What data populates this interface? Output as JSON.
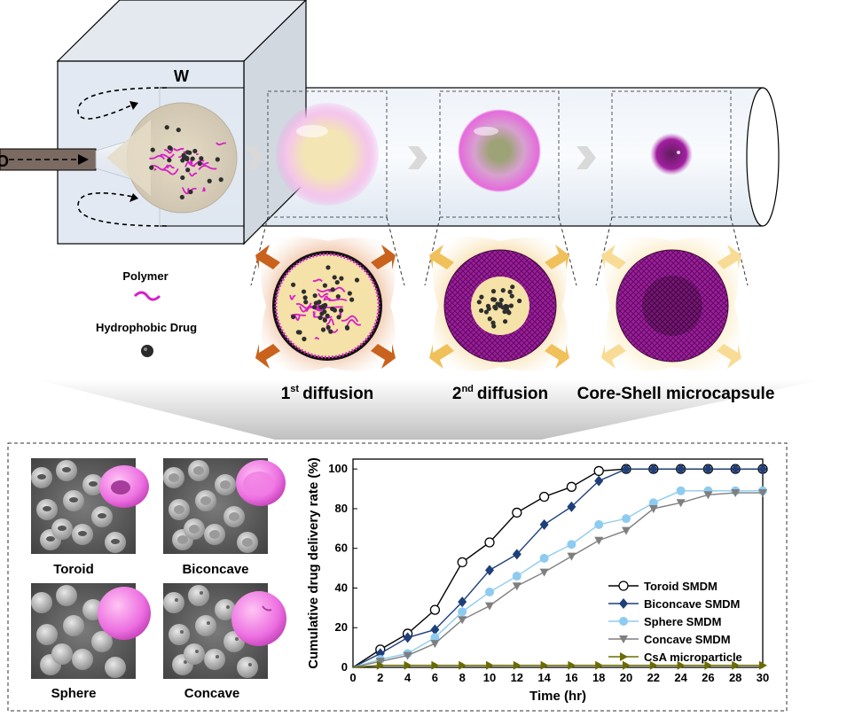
{
  "schematic": {
    "label_w": "W",
    "label_o": "O",
    "legend_polymer": "Polymer",
    "legend_drug": "Hydrophobic  Drug",
    "stage1": "diffusion",
    "stage2": "diffusion",
    "stage1_num": "1",
    "stage1_sup": "st",
    "stage2_num": "2",
    "stage2_sup": "nd",
    "stage3": "Core-Shell microcapsule",
    "colors": {
      "polymer": "#d81ec8",
      "shell": "#8c1a8e",
      "drug": "#333333",
      "tube": "#dce6f2"
    }
  },
  "sem_images": {
    "toroid": "Toroid",
    "biconcave": "Biconcave",
    "sphere": "Sphere",
    "concave": "Concave"
  },
  "chart_data": {
    "type": "line",
    "xlabel": "Time (hr)",
    "ylabel": "Cumulative drug delivery rate (%)",
    "xlim": [
      0,
      30
    ],
    "ylim": [
      0,
      105
    ],
    "xticks": [
      "0",
      "2",
      "4",
      "6",
      "8",
      "10",
      "12",
      "14",
      "16",
      "18",
      "20",
      "22",
      "24",
      "26",
      "28",
      "30"
    ],
    "yticks": [
      "0",
      "20",
      "40",
      "60",
      "80",
      "100"
    ],
    "legend_position": "bottom-right",
    "x": [
      0,
      2,
      4,
      6,
      8,
      10,
      12,
      14,
      16,
      18,
      20,
      22,
      24,
      26,
      28,
      30
    ],
    "series": [
      {
        "name": "Toroid SMDM",
        "color": "#000000",
        "marker": "circle-open",
        "values": [
          0,
          9,
          17,
          29,
          53,
          63,
          78,
          86,
          91,
          99,
          100,
          100,
          100,
          100,
          100,
          100
        ]
      },
      {
        "name": "Biconcave SMDM",
        "color": "#1f3f7a",
        "marker": "diamond",
        "values": [
          0,
          7,
          15,
          19,
          33,
          49,
          57,
          72,
          81,
          94,
          100,
          100,
          100,
          100,
          100,
          100
        ]
      },
      {
        "name": "Sphere SMDM",
        "color": "#8ecbf0",
        "marker": "circle",
        "values": [
          0,
          4,
          7,
          15,
          28,
          38,
          46,
          55,
          62,
          72,
          75,
          83,
          89,
          89,
          89,
          89
        ]
      },
      {
        "name": "Concave SMDM",
        "color": "#7f7f7f",
        "marker": "triangle-down",
        "values": [
          0,
          3,
          6,
          12,
          24,
          31,
          41,
          48,
          56,
          64,
          69,
          80,
          83,
          87,
          88,
          88
        ]
      },
      {
        "name": "CsA microparticle",
        "color": "#6b6b00",
        "marker": "triangle-right",
        "values": [
          0,
          1,
          1,
          1,
          1,
          1,
          1,
          1,
          1,
          1,
          1,
          1,
          1,
          1,
          1,
          1
        ]
      }
    ]
  }
}
